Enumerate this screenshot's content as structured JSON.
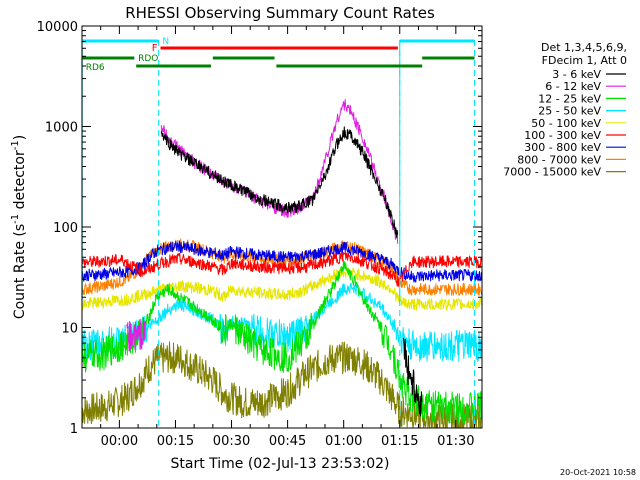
{
  "chart_data": {
    "type": "line",
    "title": "RHESSI Observing Summary Count Rates",
    "xlabel": "Start Time (02-Jul-13 23:53:02)",
    "ylabel": "Count Rate (s⁻¹ detector⁻¹)",
    "ylabel_main": "Count Rate (s",
    "ylabel_sup1": "-1",
    "ylabel_mid": " detector",
    "ylabel_sup2": "-1",
    "ylabel_end": ")",
    "yscale": "log",
    "ylim": [
      1,
      10000
    ],
    "xlim_minutes": [
      -10.0,
      97.0
    ],
    "x_ticks": [
      {
        "m": 0,
        "label": "00:00"
      },
      {
        "m": 15,
        "label": "00:15"
      },
      {
        "m": 30,
        "label": "00:30"
      },
      {
        "m": 45,
        "label": "00:45"
      },
      {
        "m": 60,
        "label": "01:00"
      },
      {
        "m": 75,
        "label": "01:15"
      },
      {
        "m": 90,
        "label": "01:30"
      }
    ],
    "y_ticks": [
      {
        "v": 1,
        "label": "1"
      },
      {
        "v": 10,
        "label": "10"
      },
      {
        "v": 100,
        "label": "100"
      },
      {
        "v": 1000,
        "label": "1000"
      },
      {
        "v": 10000,
        "label": "10000"
      }
    ],
    "legend_position": "top-right",
    "legend_header": [
      "Det 1,3,4,5,6,9,",
      "FDecim 1, Att 0"
    ],
    "series": [
      {
        "name": "3 - 6 keV",
        "color": "#000000",
        "points": [
          [
            11.2,
            850
          ],
          [
            13,
            700
          ],
          [
            16,
            540
          ],
          [
            20,
            430
          ],
          [
            25,
            330
          ],
          [
            30,
            260
          ],
          [
            35,
            210
          ],
          [
            40,
            175
          ],
          [
            45,
            155
          ],
          [
            48,
            160
          ],
          [
            52,
            190
          ],
          [
            56,
            400
          ],
          [
            58,
            650
          ],
          [
            60,
            880
          ],
          [
            62,
            820
          ],
          [
            65,
            560
          ],
          [
            68,
            330
          ],
          [
            71,
            190
          ],
          [
            73,
            120
          ],
          [
            74.5,
            80
          ]
        ],
        "points2": [
          [
            76,
            8
          ],
          [
            77,
            4
          ],
          [
            79,
            2.5
          ],
          [
            81,
            1.6
          ]
        ]
      },
      {
        "name": "6 - 12 keV",
        "color": "#e020e0",
        "points": [
          [
            11.2,
            1000
          ],
          [
            13,
            780
          ],
          [
            16,
            600
          ],
          [
            20,
            440
          ],
          [
            25,
            330
          ],
          [
            30,
            255
          ],
          [
            35,
            205
          ],
          [
            40,
            165
          ],
          [
            45,
            140
          ],
          [
            48,
            150
          ],
          [
            52,
            200
          ],
          [
            56,
            600
          ],
          [
            58,
            1100
          ],
          [
            60,
            1680
          ],
          [
            62,
            1400
          ],
          [
            65,
            800
          ],
          [
            68,
            390
          ],
          [
            71,
            190
          ],
          [
            73,
            110
          ],
          [
            74.5,
            70
          ]
        ],
        "points2": [
          [
            2,
            8
          ],
          [
            5,
            8.5
          ],
          [
            7,
            9
          ]
        ]
      },
      {
        "name": "12 - 25 keV",
        "color": "#00e000",
        "points": [
          [
            -10,
            5
          ],
          [
            -4,
            5.5
          ],
          [
            2,
            7
          ],
          [
            6,
            9
          ],
          [
            8,
            13
          ],
          [
            10,
            20
          ],
          [
            13,
            24
          ],
          [
            16,
            20
          ],
          [
            20,
            16
          ],
          [
            25,
            12
          ],
          [
            28,
            9
          ],
          [
            30,
            11
          ],
          [
            33,
            8
          ],
          [
            38,
            6
          ],
          [
            45,
            5
          ],
          [
            50,
            8
          ],
          [
            55,
            18
          ],
          [
            58,
            30
          ],
          [
            60,
            42
          ],
          [
            62,
            33
          ],
          [
            65,
            20
          ],
          [
            70,
            10
          ],
          [
            73,
            6
          ],
          [
            75,
            3
          ],
          [
            78,
            2
          ],
          [
            85,
            1.6
          ],
          [
            97,
            1.6
          ]
        ]
      },
      {
        "name": "25 - 50 keV",
        "color": "#00e6ff",
        "points": [
          [
            -10,
            6.5
          ],
          [
            -4,
            7
          ],
          [
            2,
            7.5
          ],
          [
            6,
            9
          ],
          [
            8,
            10.5
          ],
          [
            10,
            12
          ],
          [
            13,
            15
          ],
          [
            16,
            17
          ],
          [
            20,
            15
          ],
          [
            25,
            12
          ],
          [
            28,
            9
          ],
          [
            30,
            11.5
          ],
          [
            33,
            11
          ],
          [
            38,
            9
          ],
          [
            45,
            8
          ],
          [
            50,
            10
          ],
          [
            55,
            16
          ],
          [
            58,
            20
          ],
          [
            60,
            24
          ],
          [
            62,
            25
          ],
          [
            65,
            22
          ],
          [
            70,
            16
          ],
          [
            73,
            11
          ],
          [
            75,
            8
          ],
          [
            78,
            6.5
          ],
          [
            85,
            6.5
          ],
          [
            97,
            6.5
          ]
        ]
      },
      {
        "name": "50 - 100 keV",
        "color": "#e6e600",
        "points": [
          [
            -10,
            17
          ],
          [
            -4,
            18
          ],
          [
            2,
            19
          ],
          [
            6,
            21
          ],
          [
            8,
            22
          ],
          [
            10,
            23
          ],
          [
            13,
            25
          ],
          [
            16,
            26
          ],
          [
            20,
            25
          ],
          [
            25,
            23
          ],
          [
            28,
            20
          ],
          [
            30,
            24
          ],
          [
            33,
            23
          ],
          [
            38,
            22
          ],
          [
            45,
            21
          ],
          [
            50,
            24
          ],
          [
            55,
            30
          ],
          [
            58,
            34
          ],
          [
            60,
            36
          ],
          [
            62,
            35
          ],
          [
            65,
            33
          ],
          [
            70,
            28
          ],
          [
            73,
            24
          ],
          [
            75,
            18
          ],
          [
            78,
            17
          ],
          [
            85,
            17
          ],
          [
            97,
            17
          ]
        ]
      },
      {
        "name": "100 - 300 keV",
        "color": "#ff0000",
        "points": [
          [
            -10,
            44
          ],
          [
            -4,
            46
          ],
          [
            1,
            47
          ],
          [
            2,
            44
          ],
          [
            6,
            36
          ],
          [
            8,
            38
          ],
          [
            10,
            42
          ],
          [
            13,
            46
          ],
          [
            16,
            48
          ],
          [
            20,
            45
          ],
          [
            25,
            40
          ],
          [
            28,
            37
          ],
          [
            30,
            44
          ],
          [
            33,
            42
          ],
          [
            38,
            40
          ],
          [
            45,
            39
          ],
          [
            50,
            40
          ],
          [
            55,
            45
          ],
          [
            58,
            48
          ],
          [
            60,
            52
          ],
          [
            62,
            50
          ],
          [
            65,
            46
          ],
          [
            70,
            38
          ],
          [
            73,
            33
          ],
          [
            75,
            28
          ],
          [
            78,
            45
          ],
          [
            85,
            45
          ],
          [
            97,
            45
          ]
        ]
      },
      {
        "name": "300 - 800 keV",
        "color": "#0000e6",
        "points": [
          [
            -10,
            33
          ],
          [
            -4,
            34
          ],
          [
            2,
            36
          ],
          [
            6,
            40
          ],
          [
            8,
            50
          ],
          [
            10,
            58
          ],
          [
            13,
            62
          ],
          [
            16,
            64
          ],
          [
            20,
            60
          ],
          [
            25,
            55
          ],
          [
            28,
            52
          ],
          [
            30,
            57
          ],
          [
            33,
            55
          ],
          [
            38,
            52
          ],
          [
            45,
            50
          ],
          [
            50,
            52
          ],
          [
            55,
            56
          ],
          [
            58,
            60
          ],
          [
            60,
            62
          ],
          [
            62,
            60
          ],
          [
            65,
            56
          ],
          [
            70,
            48
          ],
          [
            73,
            42
          ],
          [
            75,
            36
          ],
          [
            78,
            32
          ],
          [
            85,
            33
          ],
          [
            97,
            33
          ]
        ]
      },
      {
        "name": "800 - 7000 keV",
        "color": "#ff8000",
        "points": [
          [
            -10,
            24
          ],
          [
            -4,
            26
          ],
          [
            2,
            30
          ],
          [
            6,
            40
          ],
          [
            8,
            52
          ],
          [
            10,
            58
          ],
          [
            13,
            64
          ],
          [
            16,
            67
          ],
          [
            20,
            64
          ],
          [
            25,
            55
          ],
          [
            28,
            50
          ],
          [
            30,
            54
          ],
          [
            33,
            52
          ],
          [
            38,
            48
          ],
          [
            45,
            46
          ],
          [
            50,
            50
          ],
          [
            55,
            57
          ],
          [
            58,
            62
          ],
          [
            60,
            66
          ],
          [
            62,
            63
          ],
          [
            65,
            57
          ],
          [
            70,
            46
          ],
          [
            73,
            38
          ],
          [
            75,
            28
          ],
          [
            78,
            24
          ],
          [
            85,
            24
          ],
          [
            97,
            24
          ]
        ]
      },
      {
        "name": "7000 - 15000 keV",
        "color": "#808000",
        "points": [
          [
            -10,
            1.5
          ],
          [
            -4,
            1.6
          ],
          [
            2,
            2
          ],
          [
            6,
            3
          ],
          [
            8,
            4
          ],
          [
            10,
            4.8
          ],
          [
            13,
            5
          ],
          [
            16,
            5
          ],
          [
            20,
            4
          ],
          [
            25,
            3
          ],
          [
            28,
            2.2
          ],
          [
            30,
            2
          ],
          [
            33,
            1.8
          ],
          [
            38,
            1.8
          ],
          [
            45,
            2.3
          ],
          [
            50,
            3.5
          ],
          [
            55,
            4.6
          ],
          [
            58,
            5
          ],
          [
            60,
            5
          ],
          [
            62,
            5
          ],
          [
            65,
            4.5
          ],
          [
            70,
            3
          ],
          [
            73,
            2
          ],
          [
            75,
            1.5
          ],
          [
            78,
            1.4
          ],
          [
            85,
            1.2
          ],
          [
            97,
            1.2
          ]
        ]
      }
    ],
    "state_bars": [
      {
        "label": "N",
        "color": "#00e6ff",
        "start": -10,
        "end": 10.5,
        "level": "N"
      },
      {
        "label": "N",
        "color": "#00e6ff",
        "start": 75,
        "end": 95,
        "level": "N"
      },
      {
        "label": "F",
        "color": "#ff0000",
        "start": 11,
        "end": 74.5,
        "level": "F"
      },
      {
        "label": "RDO",
        "color": "#008000",
        "start": -10,
        "end": 4,
        "level": "RDO"
      },
      {
        "label": "RDO",
        "color": "#008000",
        "start": 25,
        "end": 41.5,
        "level": "RDO"
      },
      {
        "label": "RDO",
        "color": "#008000",
        "start": 81,
        "end": 95,
        "level": "RDO"
      },
      {
        "label": "RD6",
        "color": "#008000",
        "start": 4.5,
        "end": 24.5,
        "level": "RD6"
      },
      {
        "label": "RD6",
        "color": "#008000",
        "start": 42,
        "end": 81,
        "level": "RD6"
      }
    ],
    "state_labels": {
      "N": "N",
      "F": "F",
      "RDO": "RDO",
      "RD6": "RD6"
    },
    "attenuator_marks_minutes": [
      10.5,
      75,
      95
    ],
    "footer_date": "20-Oct-2021 10:58"
  }
}
